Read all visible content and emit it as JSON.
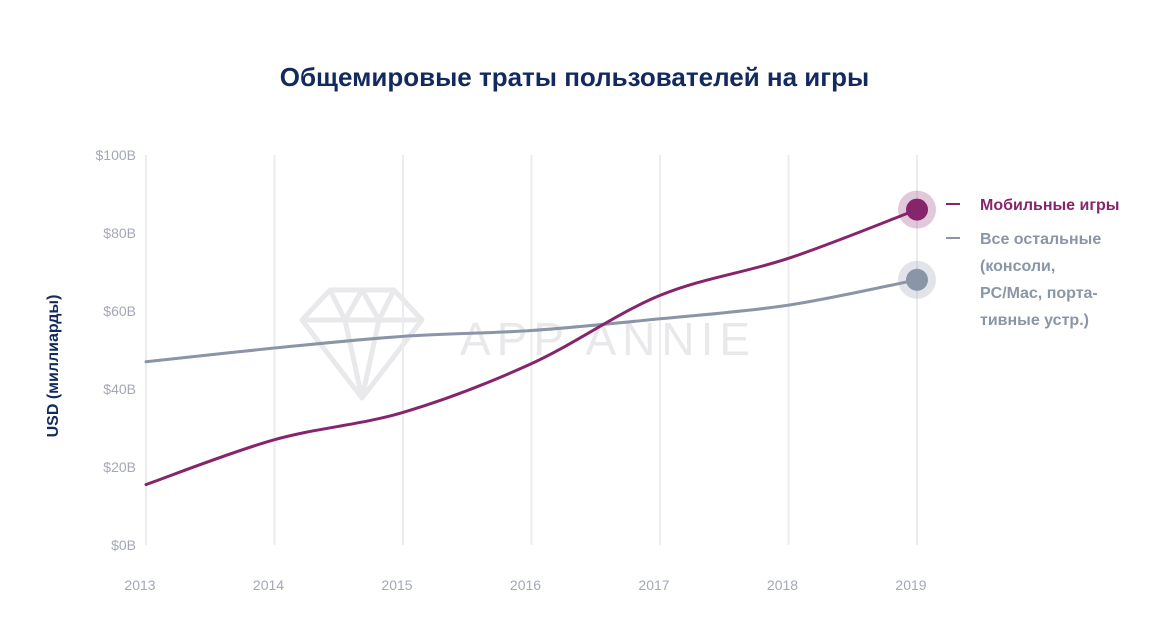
{
  "title": "Общемировые траты пользователей на игры",
  "chart_data": {
    "type": "line",
    "title": "Общемировые траты пользователей на игры",
    "ylabel": "USD (миллиарды)",
    "xlabel": "",
    "x": [
      "2013",
      "2014",
      "2015",
      "2016",
      "2017",
      "2018",
      "2019"
    ],
    "y_ticks": [
      "$0B",
      "$20B",
      "$40B",
      "$60B",
      "$80B",
      "$100B"
    ],
    "ylim": [
      0,
      100
    ],
    "grid": "vertical",
    "legend_position": "right",
    "watermark": "APP ANNIE",
    "series": [
      {
        "name": "Мобильные игры",
        "color": "#86256b",
        "values": [
          15.5,
          27,
          34,
          46.5,
          64,
          73.5,
          86
        ]
      },
      {
        "name": "Все остальные (консоли, PC/Mac, портативные устр.)",
        "color": "#8b95a8",
        "values": [
          47,
          50.5,
          53.5,
          55,
          58,
          61.5,
          68
        ]
      }
    ]
  },
  "legend": {
    "mobile": "Мобильные игры",
    "other": "Все остальные (консоли, PC/Mac, порта-тивные устр.)"
  }
}
